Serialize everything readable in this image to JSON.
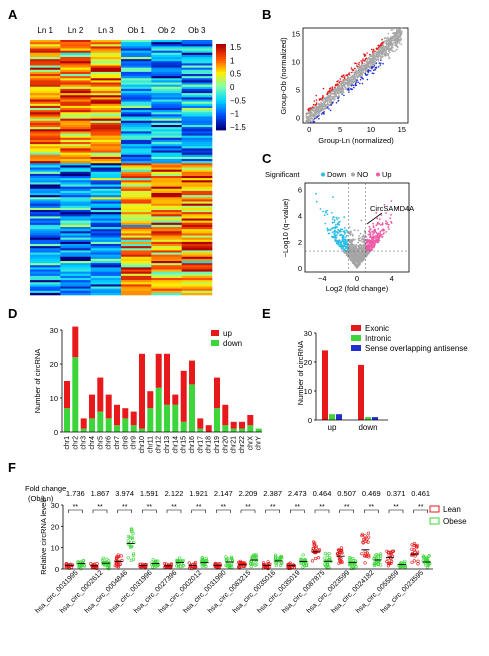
{
  "panel_labels": {
    "A": "A",
    "B": "B",
    "C": "C",
    "D": "D",
    "E": "E",
    "F": "F"
  },
  "colors": {
    "up": "#e8191b",
    "down": "#3dd63a",
    "blue": "#1f2fd0",
    "lean": "#e8191b",
    "obese": "#3dd63a",
    "cyan": "#2ebde6",
    "pink": "#ee5aa6",
    "grey": "#a6a6a6"
  },
  "chart_data": [
    {
      "panel": "A",
      "type": "heatmap",
      "columns": [
        "Ln 1",
        "Ln 2",
        "Ln 3",
        "Ob 1",
        "Ob 2",
        "Ob 3"
      ],
      "colorbar_ticks": [
        "1.5",
        "1",
        "0.5",
        "0",
        "−0.5",
        "−1",
        "−1.5"
      ],
      "colorbar_range": [
        -1.5,
        1.5
      ],
      "colormap": [
        "#00007f",
        "#0050ff",
        "#00d4ff",
        "#7fffb0",
        "#ffee00",
        "#ff5000",
        "#b00000"
      ]
    },
    {
      "panel": "B",
      "type": "scatter",
      "xlabel": "Group-Ln (normalized)",
      "ylabel": "Group-Ob (normalized)",
      "xticks": [
        "0",
        "5",
        "10",
        "15"
      ],
      "yticks": [
        "0",
        "5",
        "10",
        "15"
      ],
      "xlim": [
        -1,
        16
      ],
      "ylim": [
        -1,
        16
      ]
    },
    {
      "panel": "C",
      "type": "scatter",
      "legend_title": "Significant",
      "legend": [
        "Down",
        "NO",
        "Up"
      ],
      "xlabel": "Log2 (fold change)",
      "ylabel": "−Log10 (q−value)",
      "xticks": [
        "−4",
        "0",
        "4"
      ],
      "yticks": [
        "0",
        "2",
        "4",
        "6"
      ],
      "xlim": [
        -6,
        6
      ],
      "ylim": [
        -0.3,
        6.5
      ],
      "annotation": "CircSAMD4A"
    },
    {
      "panel": "D",
      "type": "bar",
      "stacked": true,
      "ylabel": "Number of circRNA",
      "ylim": [
        0,
        30
      ],
      "yticks": [
        "0",
        "10",
        "20",
        "30"
      ],
      "categories": [
        "chr1",
        "chr2",
        "chr3",
        "chr4",
        "chr5",
        "chr6",
        "chr7",
        "chr8",
        "chr9",
        "chr10",
        "chr11",
        "chr12",
        "chr13",
        "chr14",
        "chr15",
        "chr16",
        "chr17",
        "chr18",
        "chr19",
        "chr20",
        "chr21",
        "chr22",
        "chrX",
        "chrY"
      ],
      "series": [
        {
          "name": "down",
          "values": [
            7,
            22,
            1,
            4,
            6,
            4,
            2,
            4,
            2,
            1,
            7,
            13,
            8,
            8,
            3,
            14,
            1,
            0,
            7,
            2,
            1,
            1,
            2,
            1
          ]
        },
        {
          "name": "up",
          "values": [
            8,
            9,
            3,
            7,
            10,
            7,
            6,
            3,
            4,
            22,
            5,
            10,
            15,
            3,
            15,
            7,
            3,
            2,
            9,
            6,
            2,
            2,
            3,
            0
          ]
        }
      ]
    },
    {
      "panel": "E",
      "type": "bar",
      "ylabel": "Number of circRNA",
      "ylim": [
        0,
        30
      ],
      "yticks": [
        "0",
        "10",
        "20",
        "30"
      ],
      "categories": [
        "up",
        "down"
      ],
      "series": [
        {
          "name": "Exonic",
          "values": [
            24,
            19
          ]
        },
        {
          "name": "Intronic",
          "values": [
            2,
            1
          ]
        },
        {
          "name": "Sense overlapping antisense",
          "values": [
            2,
            1
          ]
        }
      ]
    },
    {
      "panel": "F",
      "type": "scatter",
      "fold_change_label": "Fold change",
      "fold_change_sublabel": "(Ob/Ln)",
      "ylabel": "Relative circRNA levels",
      "ylim": [
        0,
        30
      ],
      "yticks": [
        "0",
        "10",
        "20",
        "30"
      ],
      "significance": "**",
      "legend": [
        "Lean",
        "Obese"
      ],
      "categories": [
        "hsa_circ_0031995",
        "hsa_circ_0002612",
        "hsa_circ_0004846",
        "hsa_circ_0031996",
        "hsa_circ_0027396",
        "hsa_circ_0002012",
        "hsa_circ_0031990",
        "hsa_circ_0083215",
        "hsa_circ_0035016",
        "hsa_circ_0035019",
        "hsa_circ_0087875",
        "hsa_circ_0023599",
        "hsa_circ_0024182",
        "hsa_circ_0055859",
        "hsa_circ_0023595"
      ],
      "fold_change": [
        "1.736",
        "1.867",
        "3.974",
        "1.591",
        "2.122",
        "1.921",
        "2.147",
        "2.209",
        "2.387",
        "2.473",
        "0.464",
        "0.507",
        "0.469",
        "0.371",
        "0.461"
      ],
      "lean_mean": [
        1.6,
        1.5,
        3.5,
        1.6,
        1.5,
        1.7,
        1.6,
        2.0,
        1.7,
        1.6,
        8.0,
        6.0,
        9.0,
        5.5,
        7.0
      ],
      "obese_mean": [
        2.6,
        2.7,
        12.0,
        2.6,
        3.0,
        3.0,
        3.3,
        4.2,
        3.8,
        3.5,
        3.6,
        3.1,
        4.2,
        2.1,
        3.3
      ]
    }
  ]
}
